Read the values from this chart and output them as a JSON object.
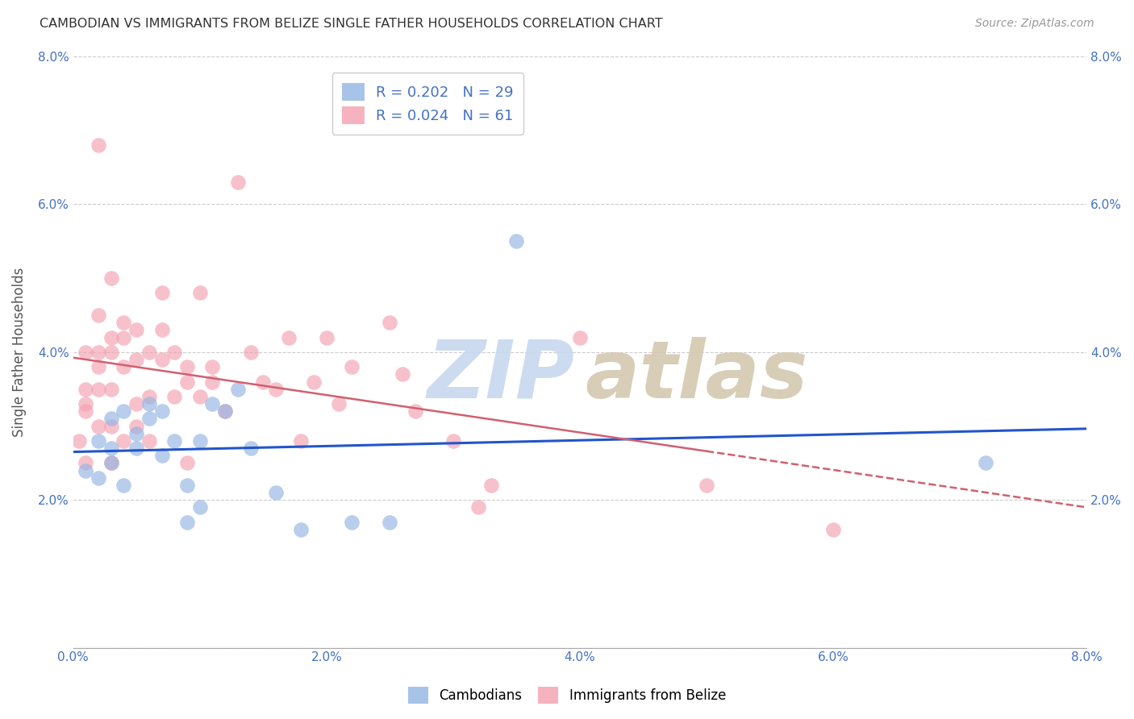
{
  "title": "CAMBODIAN VS IMMIGRANTS FROM BELIZE SINGLE FATHER HOUSEHOLDS CORRELATION CHART",
  "source": "Source: ZipAtlas.com",
  "ylabel": "Single Father Households",
  "xmin": 0.0,
  "xmax": 0.08,
  "ymin": 0.0,
  "ymax": 0.08,
  "yticks": [
    0.0,
    0.02,
    0.04,
    0.06,
    0.08
  ],
  "ytick_labels": [
    "",
    "2.0%",
    "4.0%",
    "6.0%",
    "8.0%"
  ],
  "xticks": [
    0.0,
    0.01,
    0.02,
    0.03,
    0.04,
    0.05,
    0.06,
    0.07,
    0.08
  ],
  "xtick_labels": [
    "0.0%",
    "",
    "2.0%",
    "",
    "4.0%",
    "",
    "6.0%",
    "",
    "8.0%"
  ],
  "cambodian_color": "#92b4e3",
  "belize_color": "#f4a0b0",
  "cambodian_R": 0.202,
  "cambodian_N": 29,
  "belize_R": 0.024,
  "belize_N": 61,
  "watermark_zip_color": "#c8d8f0",
  "watermark_atlas_color": "#d4c8b0",
  "cambodian_x": [
    0.001,
    0.002,
    0.002,
    0.003,
    0.003,
    0.003,
    0.004,
    0.004,
    0.005,
    0.005,
    0.006,
    0.006,
    0.007,
    0.007,
    0.008,
    0.009,
    0.009,
    0.01,
    0.01,
    0.011,
    0.012,
    0.013,
    0.014,
    0.016,
    0.018,
    0.022,
    0.025,
    0.035,
    0.072
  ],
  "cambodian_y": [
    0.024,
    0.023,
    0.028,
    0.025,
    0.027,
    0.031,
    0.022,
    0.032,
    0.029,
    0.027,
    0.031,
    0.033,
    0.026,
    0.032,
    0.028,
    0.022,
    0.017,
    0.019,
    0.028,
    0.033,
    0.032,
    0.035,
    0.027,
    0.021,
    0.016,
    0.017,
    0.017,
    0.055,
    0.025
  ],
  "belize_x": [
    0.0005,
    0.001,
    0.001,
    0.001,
    0.001,
    0.001,
    0.002,
    0.002,
    0.002,
    0.002,
    0.002,
    0.002,
    0.003,
    0.003,
    0.003,
    0.003,
    0.003,
    0.003,
    0.004,
    0.004,
    0.004,
    0.004,
    0.005,
    0.005,
    0.005,
    0.005,
    0.006,
    0.006,
    0.006,
    0.007,
    0.007,
    0.007,
    0.008,
    0.008,
    0.009,
    0.009,
    0.009,
    0.01,
    0.01,
    0.011,
    0.011,
    0.012,
    0.013,
    0.014,
    0.015,
    0.016,
    0.017,
    0.018,
    0.019,
    0.02,
    0.021,
    0.022,
    0.025,
    0.026,
    0.027,
    0.03,
    0.032,
    0.033,
    0.04,
    0.05,
    0.06
  ],
  "belize_y": [
    0.028,
    0.033,
    0.035,
    0.04,
    0.032,
    0.025,
    0.03,
    0.035,
    0.04,
    0.045,
    0.038,
    0.068,
    0.025,
    0.03,
    0.035,
    0.04,
    0.042,
    0.05,
    0.038,
    0.044,
    0.028,
    0.042,
    0.03,
    0.033,
    0.039,
    0.043,
    0.034,
    0.04,
    0.028,
    0.039,
    0.043,
    0.048,
    0.034,
    0.04,
    0.036,
    0.038,
    0.025,
    0.048,
    0.034,
    0.036,
    0.038,
    0.032,
    0.063,
    0.04,
    0.036,
    0.035,
    0.042,
    0.028,
    0.036,
    0.042,
    0.033,
    0.038,
    0.044,
    0.037,
    0.032,
    0.028,
    0.019,
    0.022,
    0.042,
    0.022,
    0.016
  ]
}
